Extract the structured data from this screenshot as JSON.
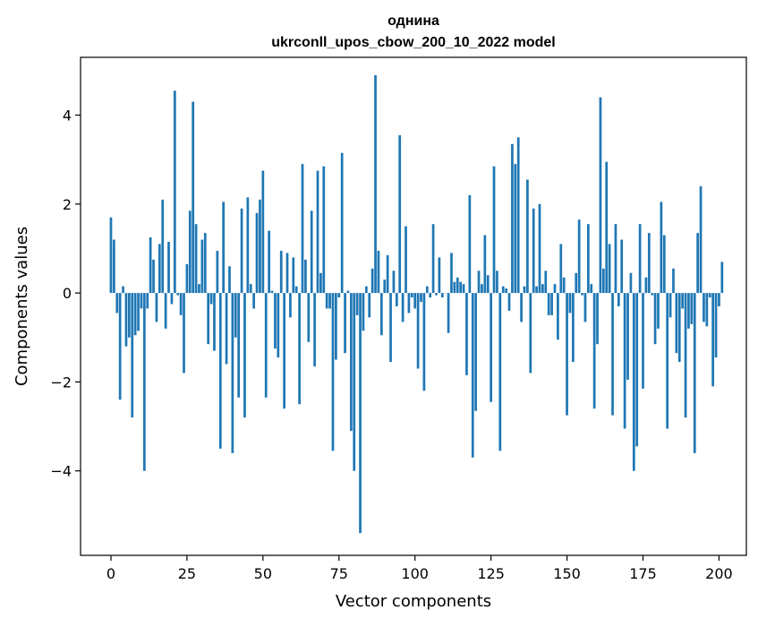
{
  "chart_data": {
    "type": "bar",
    "title_line1": "однина",
    "title_line2": "ukrconll_upos_cbow_200_10_2022 model",
    "xlabel": "Vector components",
    "ylabel": "Components values",
    "xlim": [
      -10,
      209
    ],
    "ylim": [
      -5.9,
      5.3
    ],
    "xticks": [
      0,
      25,
      50,
      75,
      100,
      125,
      150,
      175,
      200
    ],
    "yticks": [
      -4,
      -2,
      0,
      2,
      4
    ],
    "ytick_labels": [
      "−4",
      "−2",
      "0",
      "2",
      "4"
    ],
    "bar_color": "#1f77b4",
    "grid": false,
    "values": [
      1.7,
      1.2,
      -0.45,
      -2.4,
      0.15,
      -1.2,
      -1.0,
      -2.8,
      -0.95,
      -0.85,
      -0.35,
      -4.0,
      -0.35,
      1.25,
      0.75,
      -0.65,
      1.1,
      2.1,
      -0.8,
      1.15,
      -0.25,
      4.55,
      -0.05,
      -0.5,
      -1.8,
      0.65,
      1.85,
      4.3,
      1.55,
      0.2,
      1.2,
      1.35,
      -1.15,
      -0.25,
      -1.3,
      0.95,
      -3.5,
      2.05,
      -1.6,
      0.6,
      -3.6,
      -1.0,
      -2.35,
      1.9,
      -2.8,
      2.15,
      0.2,
      -0.35,
      1.8,
      2.1,
      2.75,
      -2.35,
      1.4,
      0.05,
      -1.25,
      -1.45,
      0.95,
      -2.6,
      0.9,
      -0.55,
      0.8,
      0.15,
      -2.5,
      2.9,
      0.75,
      -1.1,
      1.85,
      -1.65,
      2.75,
      0.45,
      2.85,
      -0.35,
      -0.35,
      -3.55,
      -1.5,
      -0.1,
      3.15,
      -1.35,
      0.05,
      -3.1,
      -4.0,
      -0.5,
      -5.4,
      -0.85,
      0.15,
      -0.55,
      0.55,
      4.9,
      0.95,
      -0.95,
      0.3,
      0.85,
      -1.55,
      0.5,
      -0.3,
      3.55,
      -0.65,
      1.5,
      -0.45,
      -0.1,
      -0.35,
      -1.7,
      -0.2,
      -2.2,
      0.15,
      -0.1,
      1.55,
      -0.05,
      0.8,
      -0.1,
      0.0,
      -0.9,
      0.9,
      0.25,
      0.35,
      0.25,
      0.2,
      -1.85,
      2.2,
      -3.7,
      -2.65,
      0.5,
      0.2,
      1.3,
      0.4,
      -2.45,
      2.85,
      0.5,
      -3.55,
      0.15,
      0.1,
      -0.4,
      3.35,
      2.9,
      3.5,
      -0.65,
      0.15,
      2.55,
      -1.8,
      1.9,
      0.15,
      2.0,
      0.2,
      0.5,
      -0.5,
      -0.5,
      0.2,
      -1.05,
      1.1,
      0.35,
      -2.75,
      -0.45,
      -1.55,
      0.45,
      1.65,
      -0.05,
      -0.65,
      1.55,
      0.2,
      -2.6,
      -1.15,
      4.4,
      0.55,
      2.95,
      1.1,
      -2.75,
      1.55,
      -0.3,
      1.2,
      -3.05,
      -1.95,
      0.45,
      -4.0,
      -3.45,
      1.55,
      -2.15,
      0.35,
      1.35,
      -0.05,
      -1.15,
      -0.8,
      2.05,
      1.3,
      -3.05,
      -0.55,
      0.55,
      -1.35,
      -1.55,
      -0.35,
      -2.8,
      -0.8,
      -0.7,
      -3.6,
      1.35,
      2.4,
      -0.65,
      -0.75,
      -0.1,
      -2.1,
      -1.45,
      -0.3,
      0.7
    ]
  }
}
